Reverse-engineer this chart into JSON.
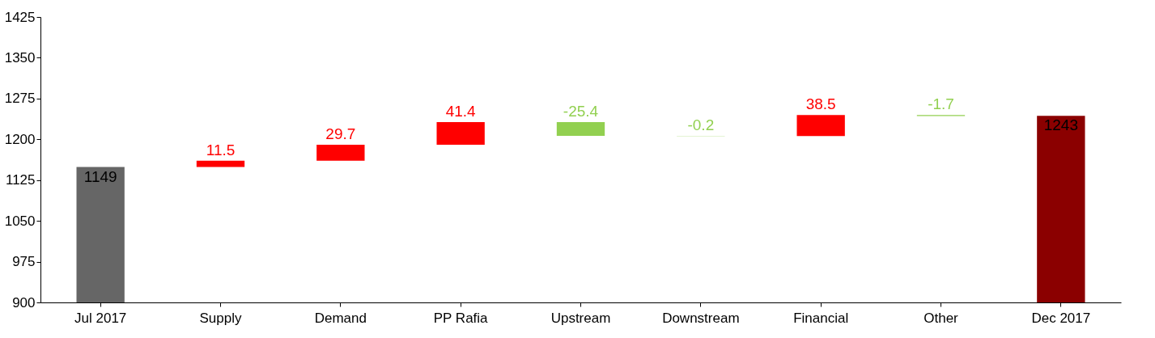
{
  "chart_data": {
    "type": "bar",
    "categories": [
      "Jul 2017",
      "Supply",
      "Demand",
      "PP Rafia",
      "Upstream",
      "Downstream",
      "Financial",
      "Other",
      "Dec 2017"
    ],
    "values": [
      1149,
      11.5,
      29.7,
      41.4,
      -25.4,
      -0.2,
      38.5,
      -1.7,
      1243
    ],
    "base": [
      null,
      1149,
      1160.5,
      1190.2,
      1231.6,
      1206.2,
      1206.0,
      1244.5,
      null
    ],
    "colors": [
      "#666666",
      "#ff0000",
      "#ff0000",
      "#ff0000",
      "#92d050",
      "#92d050",
      "#ff0000",
      "#92d050",
      "#8b0000"
    ],
    "data_labels": true,
    "ylim": [
      900,
      1425
    ],
    "yticks": [
      900,
      975,
      1050,
      1125,
      1200,
      1275,
      1350,
      1425
    ],
    "grid": false
  }
}
